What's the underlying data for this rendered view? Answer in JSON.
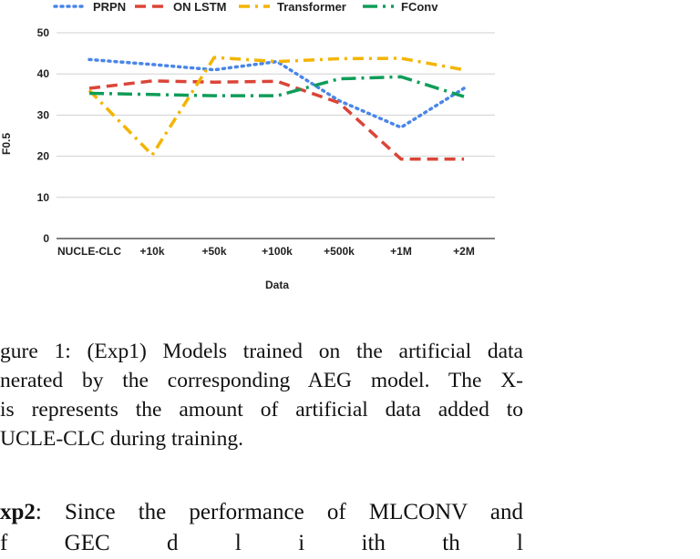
{
  "chart_data": {
    "type": "line",
    "categories": [
      "NUCLE-CLC",
      "+10k",
      "+50k",
      "+100k",
      "+500k",
      "+1M",
      "+2M"
    ],
    "series": [
      {
        "name": "PRPN",
        "color": "#4a86e8",
        "dash": "dotted",
        "values": [
          43.5,
          42.3,
          41.0,
          43.0,
          33.5,
          27.0,
          36.5
        ]
      },
      {
        "name": "ON LSTM",
        "color": "#db4437",
        "dash": "dashed",
        "values": [
          36.5,
          38.3,
          38.0,
          38.2,
          33.0,
          19.3,
          19.3
        ]
      },
      {
        "name": "Transformer",
        "color": "#f4b400",
        "dash": "dashdot-long",
        "values": [
          36.0,
          20.3,
          44.0,
          43.0,
          43.7,
          43.8,
          41.0
        ]
      },
      {
        "name": "FConv",
        "color": "#0f9d58",
        "dash": "dashdot",
        "values": [
          35.3,
          35.0,
          34.7,
          34.7,
          38.8,
          39.3,
          34.5
        ]
      }
    ],
    "xlabel": "Data",
    "ylabel": "F0.5",
    "ylim": [
      0,
      50
    ],
    "yticks": [
      0,
      10,
      20,
      30,
      40,
      50
    ],
    "grid": true,
    "legend_position": "top"
  },
  "caption": {
    "lines": [
      "gure 1: (Exp1) Models trained on the artificial data",
      "nerated by the corresponding AEG model. The X-",
      "is represents the amount of artificial data added to",
      "UCLE-CLC during training."
    ]
  },
  "body": {
    "line1_bold": "xp2",
    "line1_rest": ": Since the performance of MLCONV and",
    "line2": "f         GEC      d l i              ith th      l"
  }
}
